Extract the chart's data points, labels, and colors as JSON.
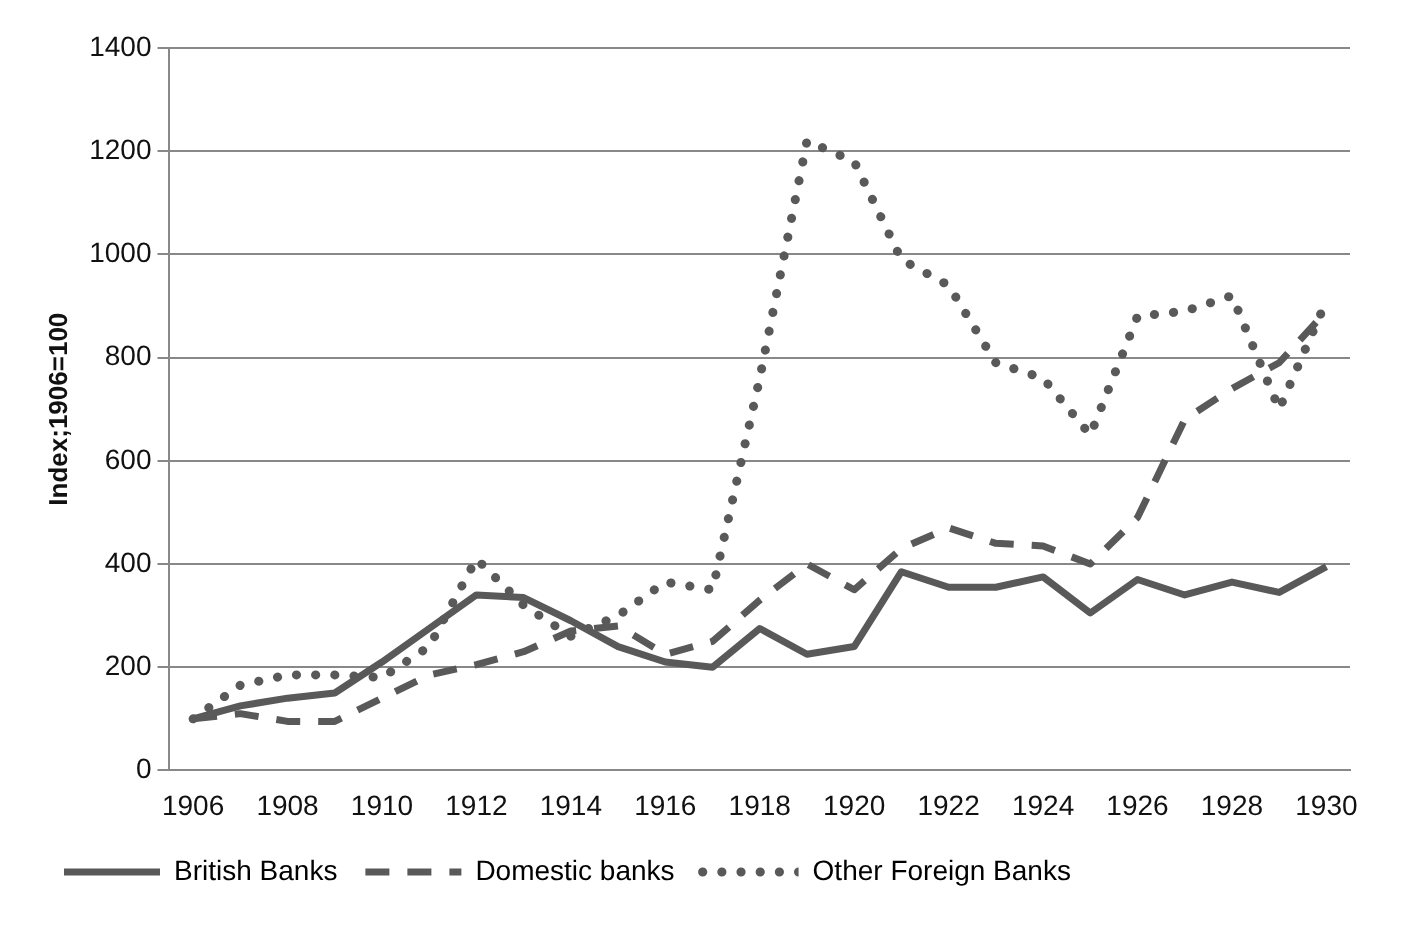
{
  "chart_data": {
    "type": "line",
    "ylabel": "Index;1906=100",
    "categories": [
      "1906",
      null,
      "1908",
      null,
      "1910",
      null,
      "1912",
      null,
      "1914",
      null,
      "1916",
      null,
      "1918",
      null,
      "1920",
      null,
      "1922",
      null,
      "1924",
      null,
      "1926",
      null,
      "1928",
      null,
      "1930"
    ],
    "series": [
      {
        "name": "British Banks",
        "color": "#595959",
        "line_style": "solid",
        "values": [
          100,
          125,
          140,
          150,
          210,
          275,
          340,
          335,
          290,
          240,
          210,
          200,
          275,
          225,
          240,
          385,
          355,
          355,
          375,
          305,
          370,
          340,
          365,
          345,
          395
        ]
      },
      {
        "name": "Domestic banks",
        "color": "#595959",
        "line_style": "dashed",
        "values": [
          100,
          110,
          95,
          95,
          140,
          185,
          205,
          230,
          270,
          280,
          225,
          250,
          330,
          400,
          350,
          430,
          470,
          440,
          435,
          400,
          490,
          680,
          740,
          790,
          890
        ]
      },
      {
        "name": "Other Foreign Banks",
        "color": "#595959",
        "line_style": "dotted",
        "values": [
          100,
          165,
          185,
          185,
          180,
          240,
          410,
          320,
          260,
          300,
          365,
          350,
          760,
          1220,
          1180,
          990,
          940,
          790,
          760,
          650,
          880,
          890,
          920,
          700,
          910
        ]
      }
    ],
    "ylim": [
      0,
      1400
    ],
    "yticks": [
      0,
      200,
      400,
      600,
      800,
      1000,
      1200,
      1400
    ],
    "grid": "y",
    "legend": "bottom",
    "marker": "none"
  }
}
